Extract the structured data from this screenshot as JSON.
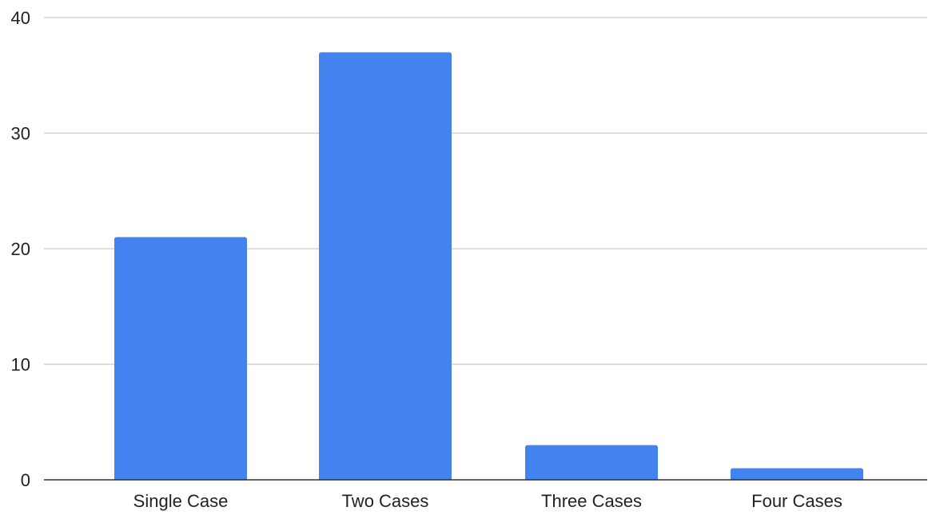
{
  "chart_data": {
    "type": "bar",
    "title": "",
    "xlabel": "",
    "ylabel": "",
    "categories": [
      "Single Case",
      "Two Cases",
      "Three Cases",
      "Four Cases"
    ],
    "values": [
      21,
      37,
      3,
      1
    ],
    "ylim": [
      0,
      40
    ],
    "yticks": [
      0,
      10,
      20,
      30,
      40
    ],
    "grid": true,
    "legend": "none",
    "colors": {
      "bar": "#4382EF",
      "grid": "#CCCCCC",
      "axis": "#333333"
    }
  }
}
